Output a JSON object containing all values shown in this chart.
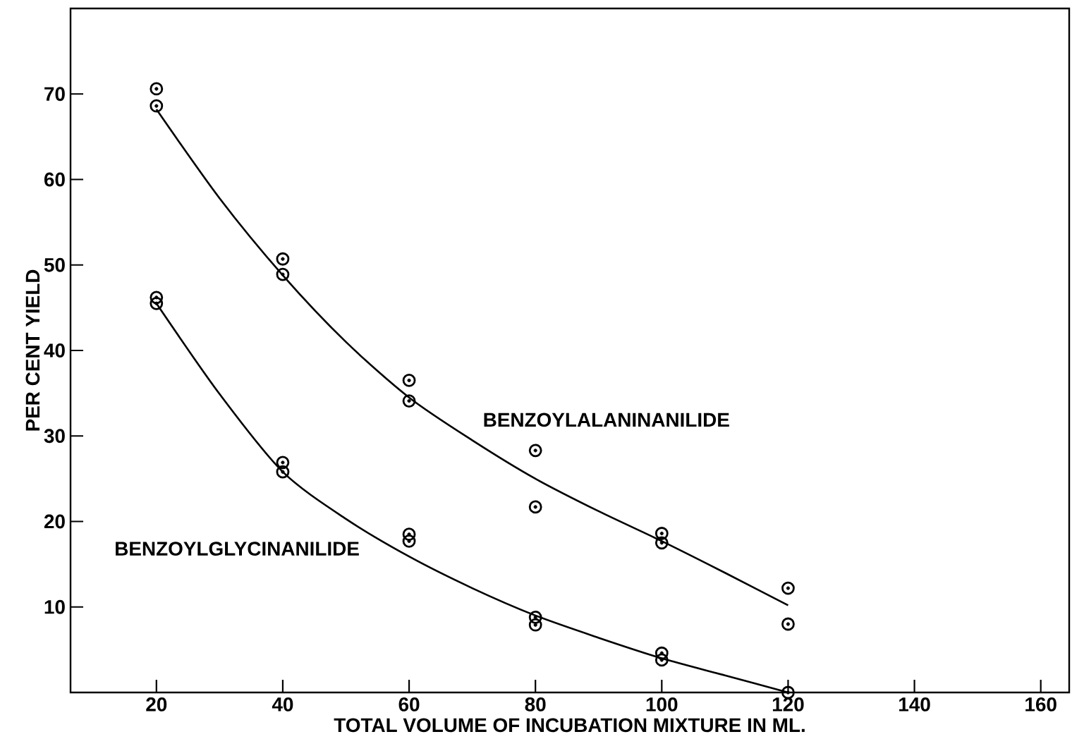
{
  "chart_data": {
    "type": "scatter",
    "xlabel": "TOTAL  VOLUME  OF  INCUBATION  MIXTURE  IN  ML.",
    "ylabel": "PER CENT  YIELD",
    "xlim": [
      6.4,
      164.5
    ],
    "ylim": [
      0,
      80
    ],
    "xticks": [
      20,
      40,
      60,
      80,
      100,
      120,
      140,
      160
    ],
    "yticks": [
      10,
      20,
      30,
      40,
      50,
      60,
      70
    ],
    "grid": false,
    "series": [
      {
        "color": "#000000",
        "marker": "circle",
        "x": [
          20,
          20,
          40,
          40,
          60,
          60,
          80,
          80,
          100,
          100,
          120,
          120
        ],
        "values": [
          70.6,
          68.6,
          50.7,
          48.9,
          36.5,
          34.1,
          28.3,
          21.7,
          18.6,
          17.5,
          12.2,
          8.0
        ]
      },
      {
        "color": "#000000",
        "marker": "circle",
        "x": [
          20,
          20,
          40,
          40,
          60,
          60,
          80,
          80,
          100,
          100,
          120
        ],
        "values": [
          46.2,
          45.5,
          26.9,
          25.8,
          18.5,
          17.7,
          8.8,
          7.9,
          4.6,
          3.8,
          0
        ]
      },
      {
        "type": "line",
        "name": "BENZOYLALANINANILIDE",
        "color": "#000000",
        "marker": "none",
        "line_style": "solid",
        "x": [
          20,
          30,
          40,
          50,
          60,
          70,
          80,
          90,
          100,
          110,
          120
        ],
        "values": [
          68.2,
          57.8,
          48.8,
          41.0,
          34.5,
          29.5,
          25.0,
          21.2,
          17.7,
          14.0,
          10.2
        ]
      },
      {
        "type": "line",
        "name": "BENZOYLGLYCINANILIDE",
        "color": "#000000",
        "marker": "none",
        "line_style": "solid",
        "x": [
          20,
          30,
          40,
          50,
          60,
          70,
          80,
          90,
          100,
          110,
          120
        ],
        "values": [
          45.5,
          34.9,
          25.8,
          20.3,
          15.9,
          12.2,
          9.0,
          6.4,
          4.0,
          2.0,
          0
        ]
      }
    ]
  }
}
